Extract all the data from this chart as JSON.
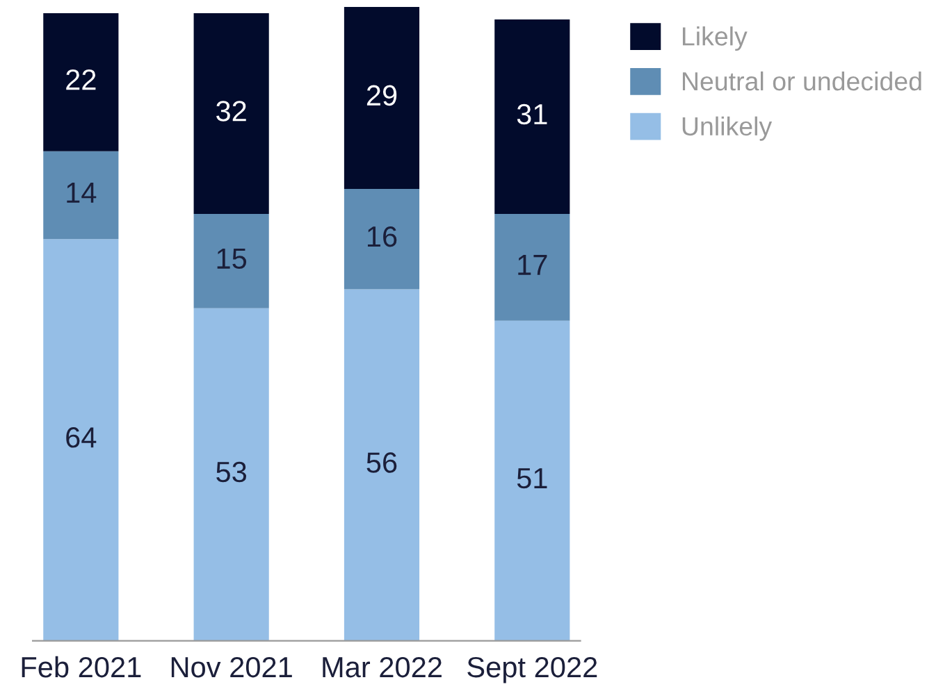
{
  "chart_data": {
    "type": "bar",
    "stacked": true,
    "categories": [
      "Feb 2021",
      "Nov 2021",
      "Mar 2022",
      "Sept 2022"
    ],
    "series": [
      {
        "name": "Unlikely",
        "color": "#95bee6",
        "values": [
          64,
          53,
          56,
          51
        ]
      },
      {
        "name": "Neutral or undecided",
        "color": "#5f8db4",
        "values": [
          14,
          15,
          16,
          17
        ]
      },
      {
        "name": "Likely",
        "color": "#020b2c",
        "values": [
          22,
          32,
          29,
          31
        ]
      }
    ],
    "data_labels": true,
    "legend": "top right",
    "grid": false
  }
}
